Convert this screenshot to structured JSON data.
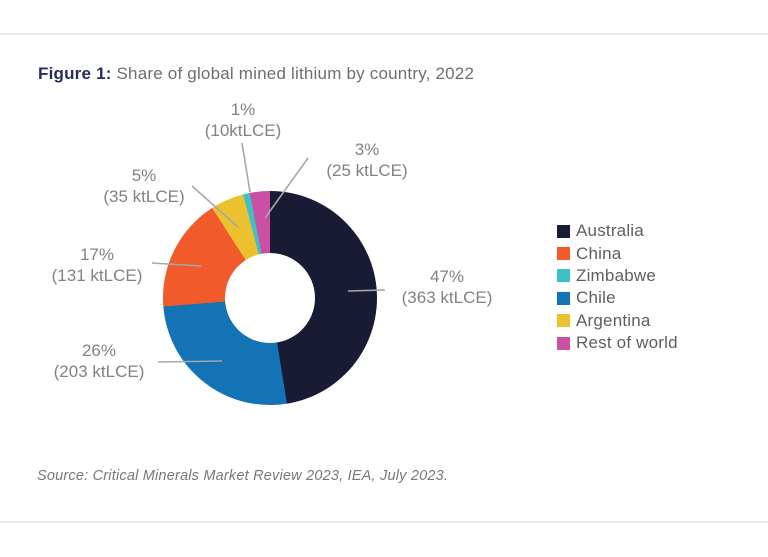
{
  "figure": {
    "title_prefix": "Figure 1:",
    "title_rest": " Share of global mined lithium by country, 2022",
    "source": "Source: Critical Minerals Market Review 2023, IEA, July 2023."
  },
  "style": {
    "title_prefix_color": "#242e5e",
    "title_text_color": "#6d6e71",
    "callout_text_color": "#818285",
    "leader_line_color": "#a6a7a9",
    "legend_text_color": "#5d5e61",
    "divider_color": "#e8e9e9",
    "background_color": "#ffffff"
  },
  "chart_data": {
    "type": "pie",
    "subtype": "donut",
    "title": "Share of global mined lithium by country, 2022",
    "units": "ktLCE",
    "direction": "clockwise",
    "start_angle_deg": 0,
    "legend_position": "right",
    "slices": [
      {
        "label": "Australia",
        "percent": 47,
        "value": 363,
        "color": "#191a33",
        "callout_line1": "47%",
        "callout_line2": "(363 ktLCE)"
      },
      {
        "label": "Chile",
        "percent": 26,
        "value": 203,
        "color": "#1373b4",
        "callout_line1": "26%",
        "callout_line2": "(203 ktLCE)"
      },
      {
        "label": "China",
        "percent": 17,
        "value": 131,
        "color": "#f15b2b",
        "callout_line1": "17%",
        "callout_line2": "(131 ktLCE)"
      },
      {
        "label": "Argentina",
        "percent": 5,
        "value": 35,
        "color": "#ecc12f",
        "callout_line1": "5%",
        "callout_line2": "(35 ktLCE)"
      },
      {
        "label": "Zimbabwe",
        "percent": 1,
        "value": 10,
        "color": "#3fc0c6",
        "callout_line1": "1%",
        "callout_line2": "(10ktLCE)"
      },
      {
        "label": "Rest of world",
        "percent": 3,
        "value": 25,
        "color": "#cc4fa6",
        "callout_line1": "3%",
        "callout_line2": "(25 ktLCE)"
      }
    ],
    "legend_order": [
      "Australia",
      "China",
      "Zimbabwe",
      "Chile",
      "Argentina",
      "Rest of world"
    ]
  }
}
